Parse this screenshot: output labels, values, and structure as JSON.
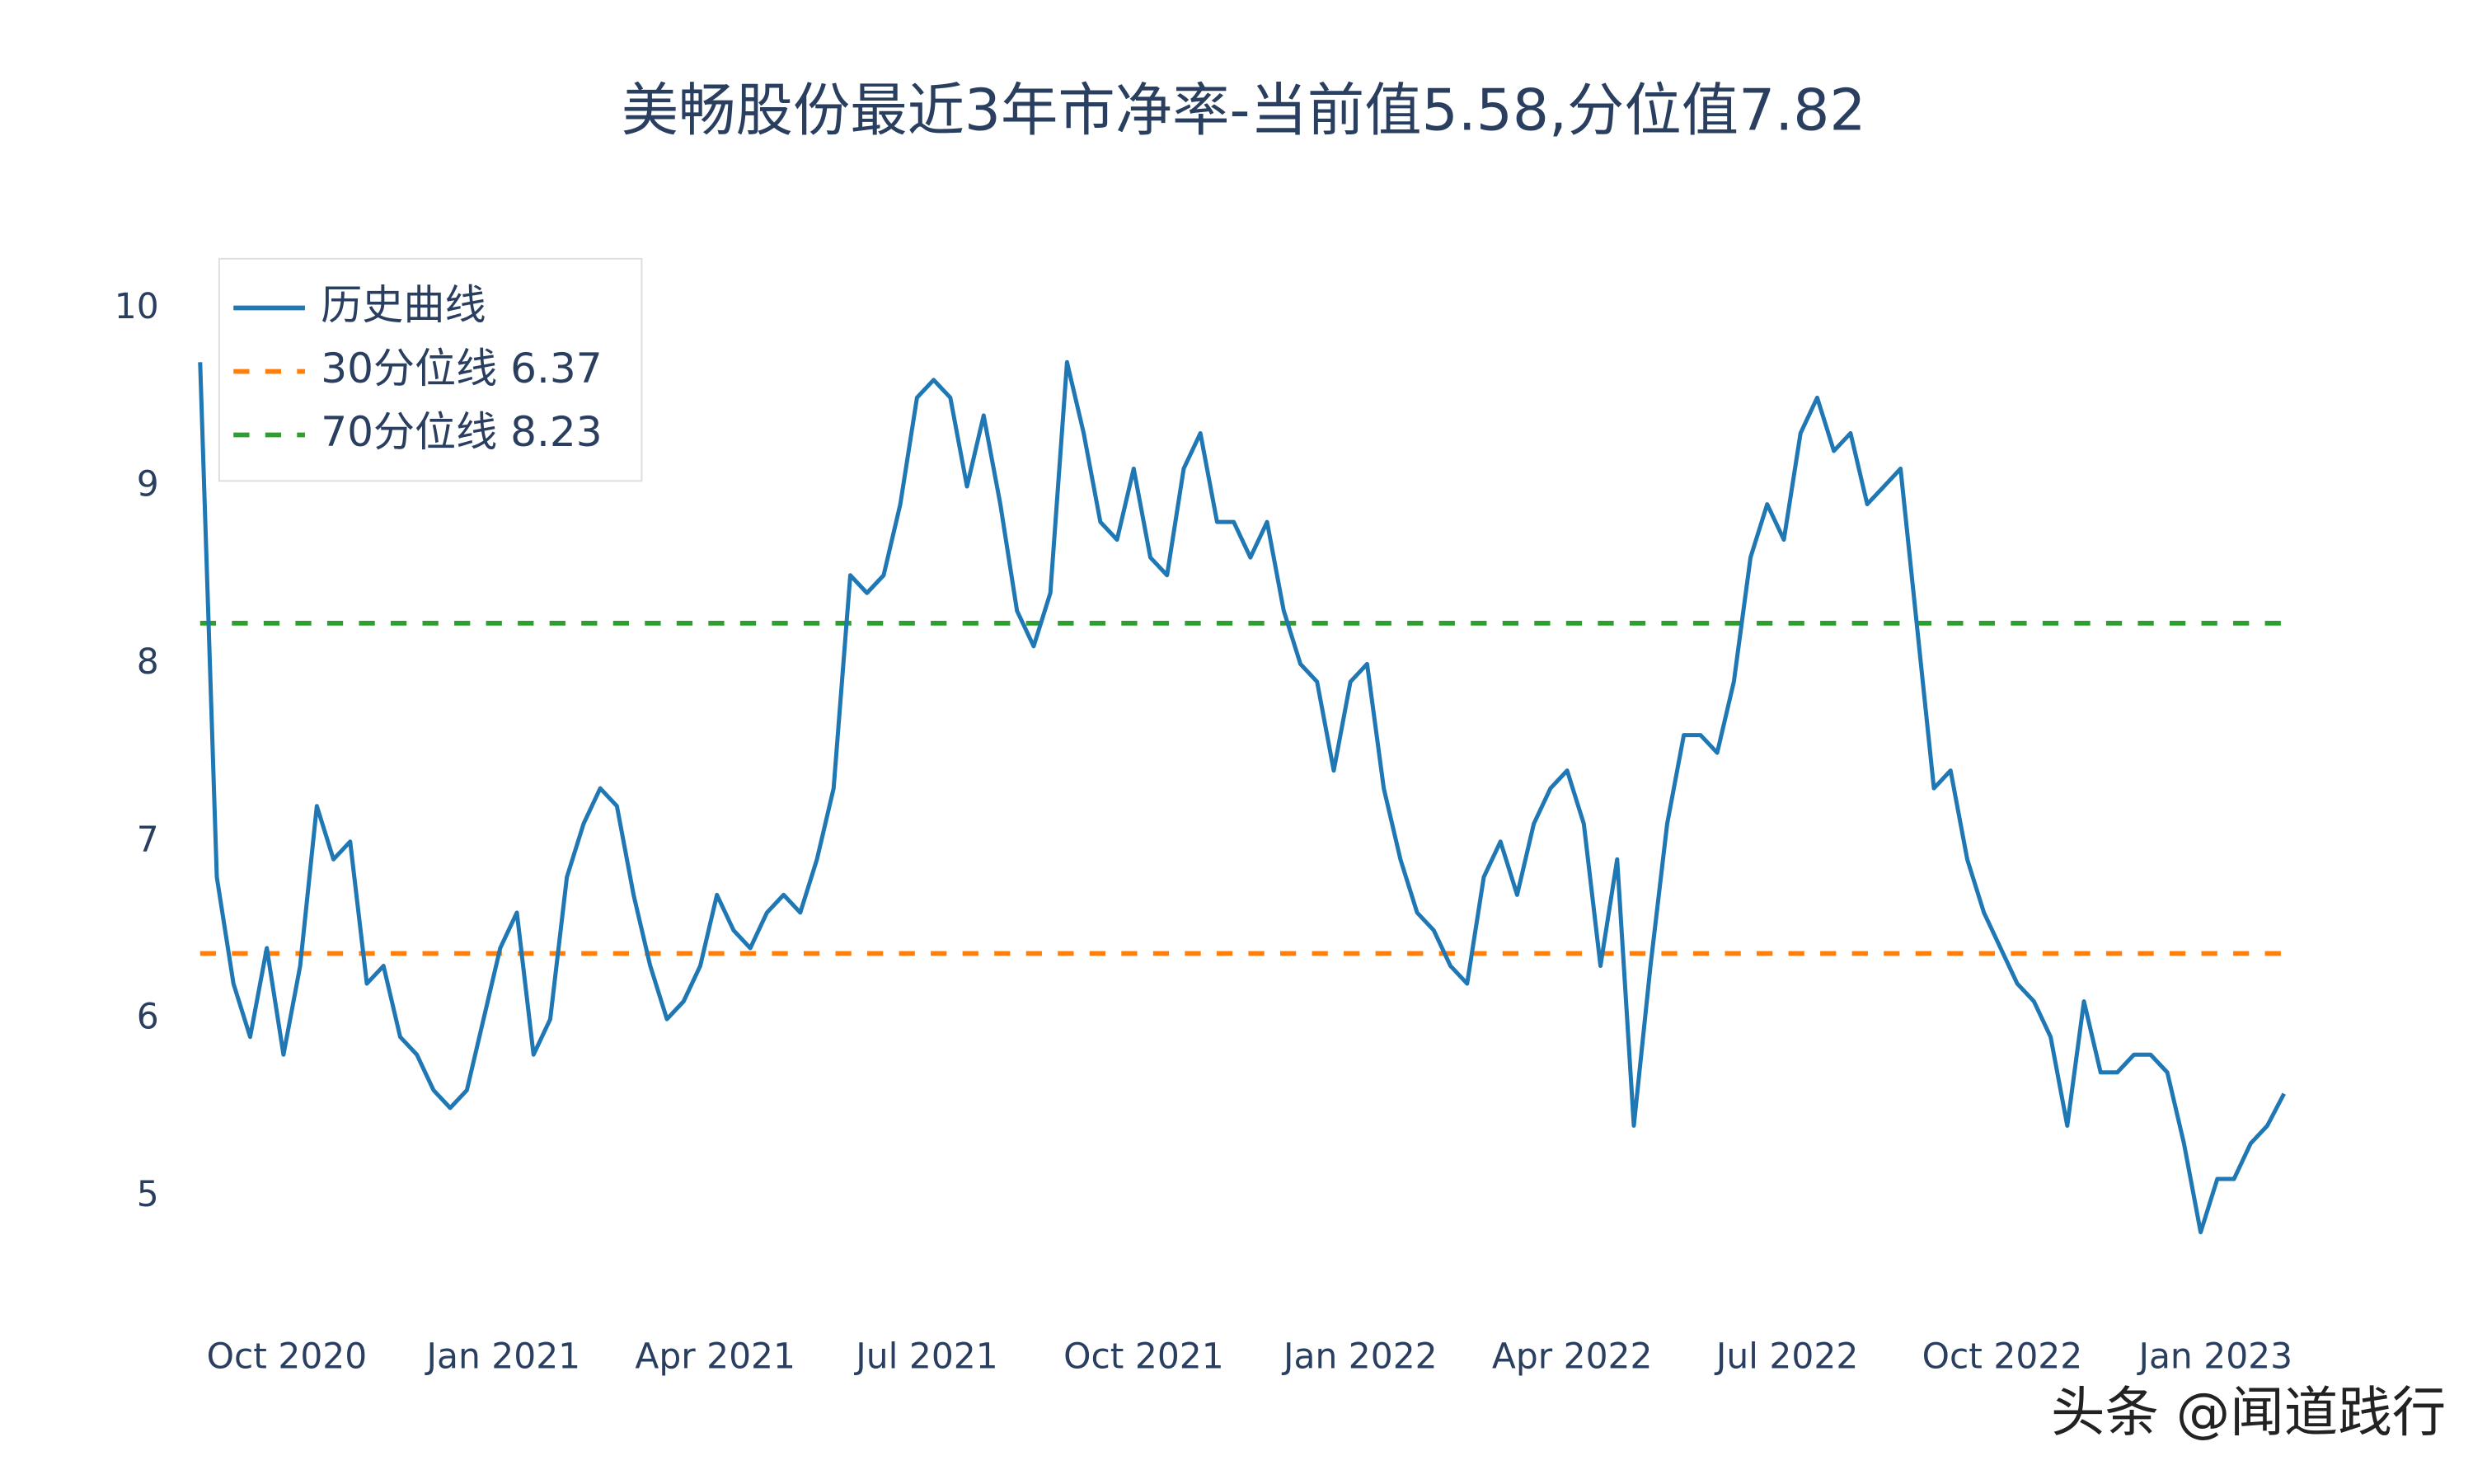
{
  "chart_data": {
    "type": "line",
    "title": "美畅股份最近3年市净率-当前值5.58,分位值7.82",
    "watermark": "头条 @闻道践行",
    "series": [
      {
        "name": "历史曲线",
        "color": "#1f77b4",
        "values": [
          9.7,
          6.8,
          6.2,
          5.9,
          6.4,
          5.8,
          6.3,
          7.2,
          6.9,
          7.0,
          6.2,
          6.3,
          5.9,
          5.8,
          5.6,
          5.5,
          5.6,
          6.0,
          6.4,
          6.6,
          5.8,
          6.0,
          6.8,
          7.1,
          7.3,
          7.2,
          6.7,
          6.3,
          6.0,
          6.1,
          6.3,
          6.7,
          6.5,
          6.4,
          6.6,
          6.7,
          6.6,
          6.9,
          7.3,
          8.5,
          8.4,
          8.5,
          8.9,
          9.5,
          9.6,
          9.5,
          9.0,
          9.4,
          8.9,
          8.3,
          8.1,
          8.4,
          9.7,
          9.3,
          8.8,
          8.7,
          9.1,
          8.6,
          8.5,
          9.1,
          9.3,
          8.8,
          8.8,
          8.6,
          8.8,
          8.3,
          8.0,
          7.9,
          7.4,
          7.9,
          8.0,
          7.3,
          6.9,
          6.6,
          6.5,
          6.3,
          6.2,
          6.8,
          7.0,
          6.7,
          7.1,
          7.3,
          7.4,
          7.1,
          6.3,
          6.9,
          5.4,
          6.3,
          7.1,
          7.6,
          7.6,
          7.5,
          7.9,
          8.6,
          8.9,
          8.7,
          9.3,
          9.5,
          9.2,
          9.3,
          8.9,
          9.0,
          9.1,
          8.2,
          7.3,
          7.4,
          6.9,
          6.6,
          6.4,
          6.2,
          6.1,
          5.9,
          5.4,
          6.1,
          5.7,
          5.7,
          5.8,
          5.8,
          5.7,
          5.3,
          4.8,
          5.1,
          5.1,
          5.3,
          5.4,
          5.58
        ]
      }
    ],
    "hlines": [
      {
        "name": "30分位线 6.37",
        "value": 6.37,
        "color": "#ff7f0e"
      },
      {
        "name": "70分位线 8.23",
        "value": 8.23,
        "color": "#2ca02c"
      }
    ],
    "xlim": [
      0,
      125
    ],
    "xticks": [
      {
        "value": 5.2,
        "label": "Oct 2020"
      },
      {
        "value": 18.2,
        "label": "Jan 2021"
      },
      {
        "value": 30.9,
        "label": "Apr 2021"
      },
      {
        "value": 43.6,
        "label": "Jul 2021"
      },
      {
        "value": 56.6,
        "label": "Oct 2021"
      },
      {
        "value": 69.6,
        "label": "Jan 2022"
      },
      {
        "value": 82.3,
        "label": "Apr 2022"
      },
      {
        "value": 95.2,
        "label": "Jul 2022"
      },
      {
        "value": 108.1,
        "label": "Oct 2022"
      },
      {
        "value": 120.9,
        "label": "Jan 2023"
      }
    ],
    "ylim": [
      4.41,
      10.22
    ],
    "yticks": [
      5,
      6,
      7,
      8,
      9,
      10
    ]
  }
}
